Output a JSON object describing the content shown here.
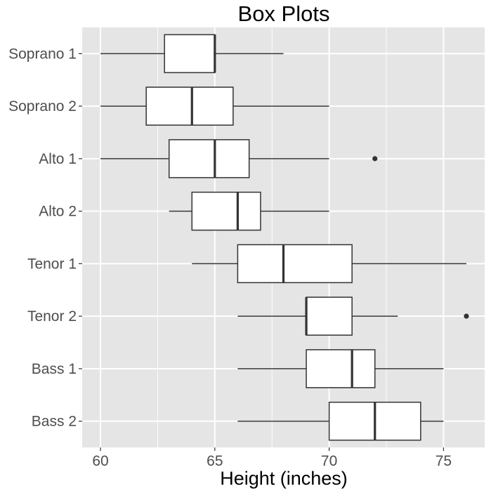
{
  "chart_data": {
    "type": "boxplot",
    "orientation": "horizontal",
    "title": "Box Plots",
    "xlabel": "Height (inches)",
    "ylabel": "",
    "xlim": [
      59.2,
      76.8
    ],
    "xticks": [
      60,
      65,
      70,
      75
    ],
    "grid": true,
    "series": [
      {
        "name": "Soprano 1",
        "whisker_low": 60,
        "q1": 62.8,
        "median": 65,
        "q3": 65,
        "whisker_high": 68,
        "outliers": []
      },
      {
        "name": "Soprano 2",
        "whisker_low": 60,
        "q1": 62,
        "median": 64,
        "q3": 65.8,
        "whisker_high": 70,
        "outliers": []
      },
      {
        "name": "Alto 1",
        "whisker_low": 60,
        "q1": 63,
        "median": 65,
        "q3": 66.5,
        "whisker_high": 70,
        "outliers": [
          72
        ]
      },
      {
        "name": "Alto 2",
        "whisker_low": 63,
        "q1": 64,
        "median": 66,
        "q3": 67,
        "whisker_high": 70,
        "outliers": []
      },
      {
        "name": "Tenor 1",
        "whisker_low": 64,
        "q1": 66,
        "median": 68,
        "q3": 71,
        "whisker_high": 76,
        "outliers": []
      },
      {
        "name": "Tenor 2",
        "whisker_low": 66,
        "q1": 69,
        "median": 69,
        "q3": 71,
        "whisker_high": 73,
        "outliers": [
          76
        ]
      },
      {
        "name": "Bass 1",
        "whisker_low": 66,
        "q1": 69,
        "median": 71,
        "q3": 72,
        "whisker_high": 75,
        "outliers": []
      },
      {
        "name": "Bass 2",
        "whisker_low": 66,
        "q1": 70,
        "median": 72,
        "q3": 74,
        "whisker_high": 75,
        "outliers": []
      }
    ],
    "colors": {
      "panel_background": "#e5e5e5",
      "grid_major": "#ffffff",
      "box_fill": "#ffffff",
      "box_stroke": "#333333",
      "tick_text": "#4d4d4d"
    }
  }
}
